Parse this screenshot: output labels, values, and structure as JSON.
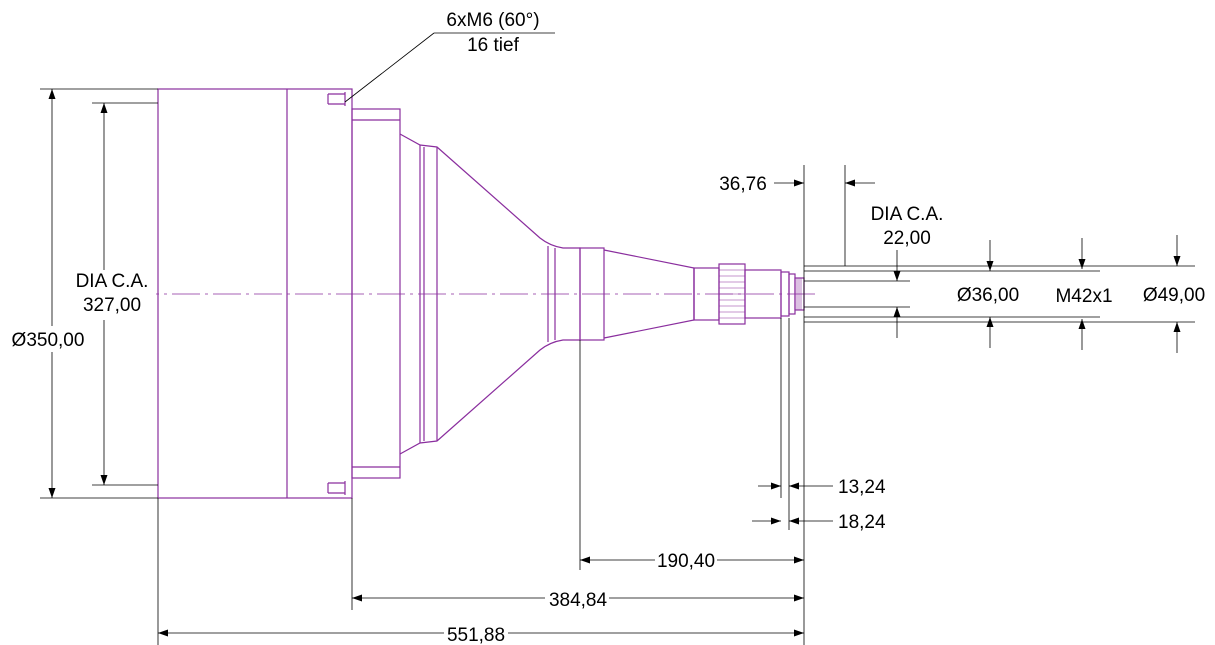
{
  "colors": {
    "part": "#8a2e9e",
    "dimension": "#000000",
    "background": "#ffffff"
  },
  "labels": {
    "thread_callout_line1": "6xM6 (60°)",
    "thread_callout_line2": "16 tief",
    "dia_ca_large_line1": "DIA C.A.",
    "dia_ca_large_line2": "327,00",
    "dia_350": "Ø350,00",
    "dim_36_76": "36,76",
    "dia_ca_small_line1": "DIA C.A.",
    "dia_ca_small_line2": "22,00",
    "dia_36": "Ø36,00",
    "thread_m42": "M42x1",
    "dia_49": "Ø49,00",
    "dim_13_24": "13,24",
    "dim_18_24": "18,24",
    "dim_190_40": "190,40",
    "dim_384_84": "384,84",
    "dim_551_88": "551,88"
  }
}
